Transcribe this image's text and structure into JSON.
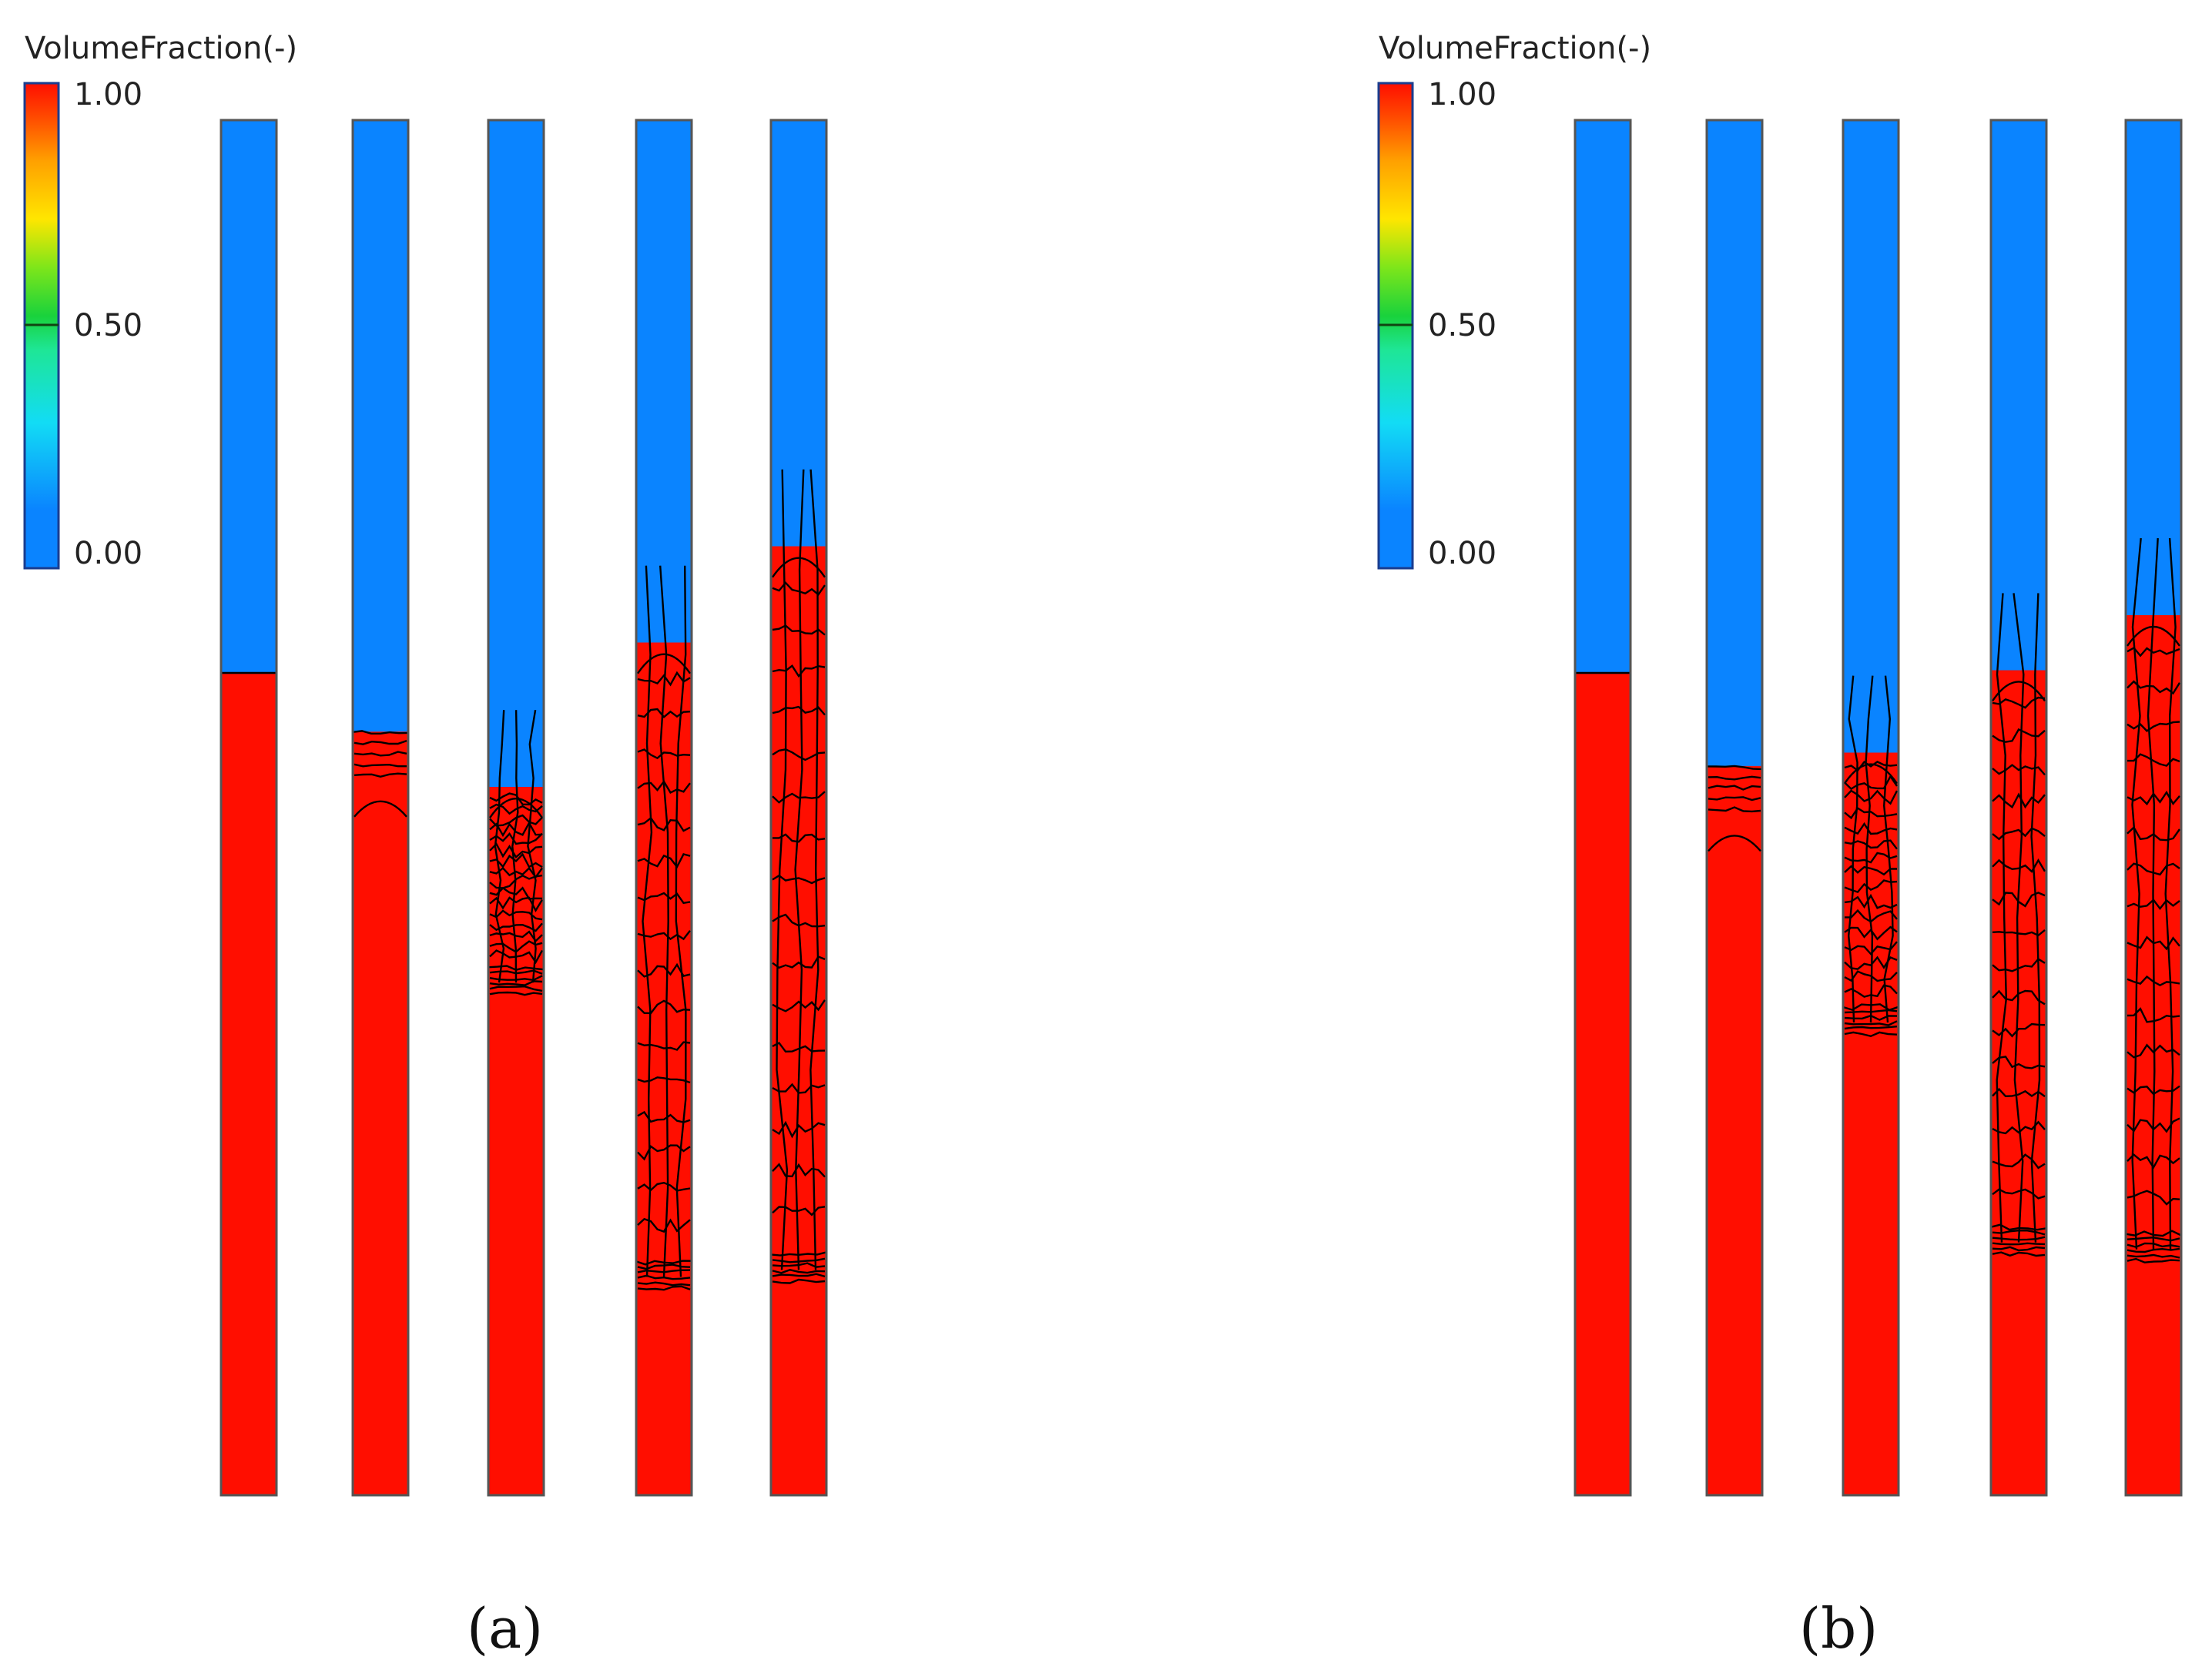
{
  "legend": {
    "title": "VolumeFraction(-)",
    "ticks": [
      "1.00",
      "0.50",
      "0.00"
    ],
    "colormap": [
      "#0a84ff",
      "#12c8f5",
      "#21f0c8",
      "#19d23c",
      "#9ee617",
      "#ffe600",
      "#ffa000",
      "#ff4a00",
      "#ff0e00"
    ]
  },
  "panels": [
    {
      "label": "(a)",
      "columns": [
        {
          "bed_top": 0.598,
          "mix_top": 0.598,
          "mode": "sharp"
        },
        {
          "bed_top": 0.555,
          "mix_top": 0.555,
          "mode": "pure"
        },
        {
          "bed_top": 0.384,
          "mix_top": 0.515,
          "mode": "mixed"
        },
        {
          "bed_top": 0.17,
          "mix_top": 0.62,
          "mode": "mixed"
        },
        {
          "bed_top": 0.175,
          "mix_top": 0.69,
          "mode": "mixed"
        }
      ]
    },
    {
      "label": "(b)",
      "columns": [
        {
          "bed_top": 0.598,
          "mix_top": 0.598,
          "mode": "sharp"
        },
        {
          "bed_top": 0.53,
          "mix_top": 0.53,
          "mode": "pure"
        },
        {
          "bed_top": 0.355,
          "mix_top": 0.54,
          "mode": "mixed"
        },
        {
          "bed_top": 0.195,
          "mix_top": 0.6,
          "mode": "mixed"
        },
        {
          "bed_top": 0.19,
          "mix_top": 0.64,
          "mode": "mixed"
        }
      ]
    }
  ]
}
